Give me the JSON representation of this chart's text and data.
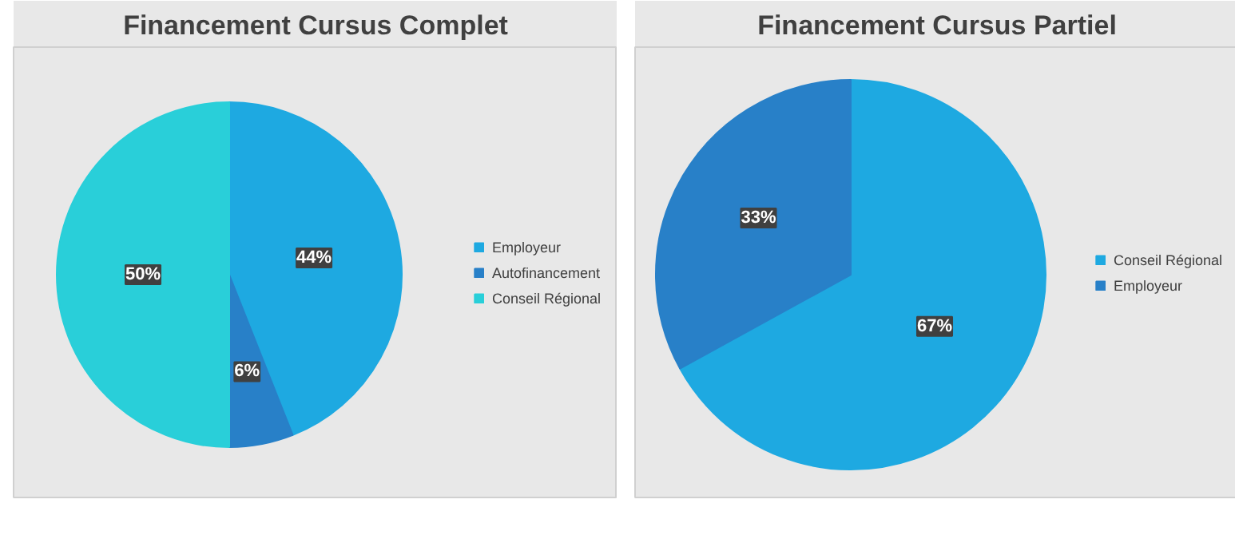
{
  "chart_data": [
    {
      "type": "pie",
      "title": "Financement Cursus Complet",
      "categories": [
        "Employeur",
        "Autofinancement",
        "Conseil Régional"
      ],
      "values": [
        44,
        6,
        50
      ],
      "colors": [
        "#1ea9e1",
        "#2880c8",
        "#29cfd9"
      ],
      "value_labels": [
        "44%",
        "6%",
        "50%"
      ],
      "legend": "right"
    },
    {
      "type": "pie",
      "title": "Financement Cursus Partiel",
      "categories": [
        "Conseil Régional",
        "Employeur"
      ],
      "values": [
        67,
        33
      ],
      "colors": [
        "#1ea9e1",
        "#2880c8"
      ],
      "value_labels": [
        "67%",
        "33%"
      ],
      "legend": "right"
    }
  ]
}
